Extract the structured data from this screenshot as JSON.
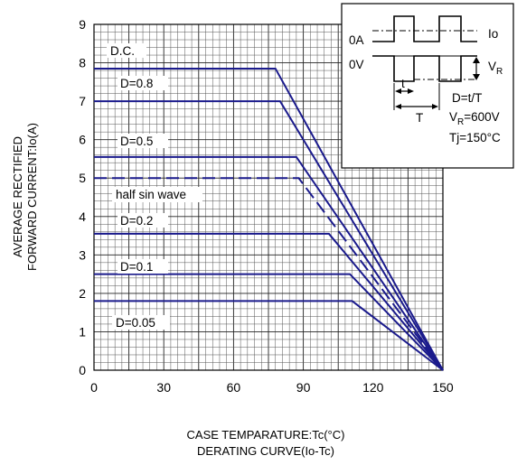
{
  "chart_data": {
    "type": "line",
    "xlabel": "CASE TEMPARATURE:Tc(°C)",
    "caption": "DERATING CURVE(Io-Tc)",
    "ylabel_line1": "AVERAGE RECTIFIED",
    "ylabel_line2": "FORWARD CURRENT:Io(A)",
    "xlim": [
      0,
      150
    ],
    "ylim": [
      0,
      9
    ],
    "xticks": [
      "0",
      "30",
      "60",
      "90",
      "120",
      "150"
    ],
    "yticks": [
      "0",
      "1",
      "2",
      "3",
      "4",
      "5",
      "6",
      "7",
      "8",
      "9"
    ],
    "grid": true,
    "series": [
      {
        "name": "D.C.",
        "x": [
          0,
          78,
          150
        ],
        "y": [
          7.85,
          7.85,
          0
        ],
        "dashed": false
      },
      {
        "name": "D=0.8",
        "x": [
          0,
          80,
          150
        ],
        "y": [
          7.0,
          7.0,
          0
        ],
        "dashed": false
      },
      {
        "name": "D=0.5",
        "x": [
          0,
          87,
          150
        ],
        "y": [
          5.55,
          5.55,
          0
        ],
        "dashed": false
      },
      {
        "name": "half sin wave",
        "x": [
          0,
          88,
          150
        ],
        "y": [
          5.0,
          5.0,
          0
        ],
        "dashed": true
      },
      {
        "name": "D=0.2",
        "x": [
          0,
          101,
          150
        ],
        "y": [
          3.55,
          3.55,
          0
        ],
        "dashed": false
      },
      {
        "name": "D=0.1",
        "x": [
          0,
          110,
          150
        ],
        "y": [
          2.5,
          2.5,
          0
        ],
        "dashed": false
      },
      {
        "name": "D=0.05",
        "x": [
          0,
          111,
          150
        ],
        "y": [
          1.8,
          1.8,
          0
        ],
        "dashed": false
      }
    ],
    "inset": {
      "io": "Io",
      "zero_a": "0A",
      "zero_v": "0V",
      "vr": "V",
      "vr_sub": "R",
      "t_small": "t",
      "t_big": "T",
      "duty": "D=t/T",
      "vr_val_prefix": "V",
      "vr_val_sub": "R",
      "vr_val_suffix": "=600V",
      "tj": "Tj=150°C"
    },
    "line_color": "#1a1a8c"
  }
}
